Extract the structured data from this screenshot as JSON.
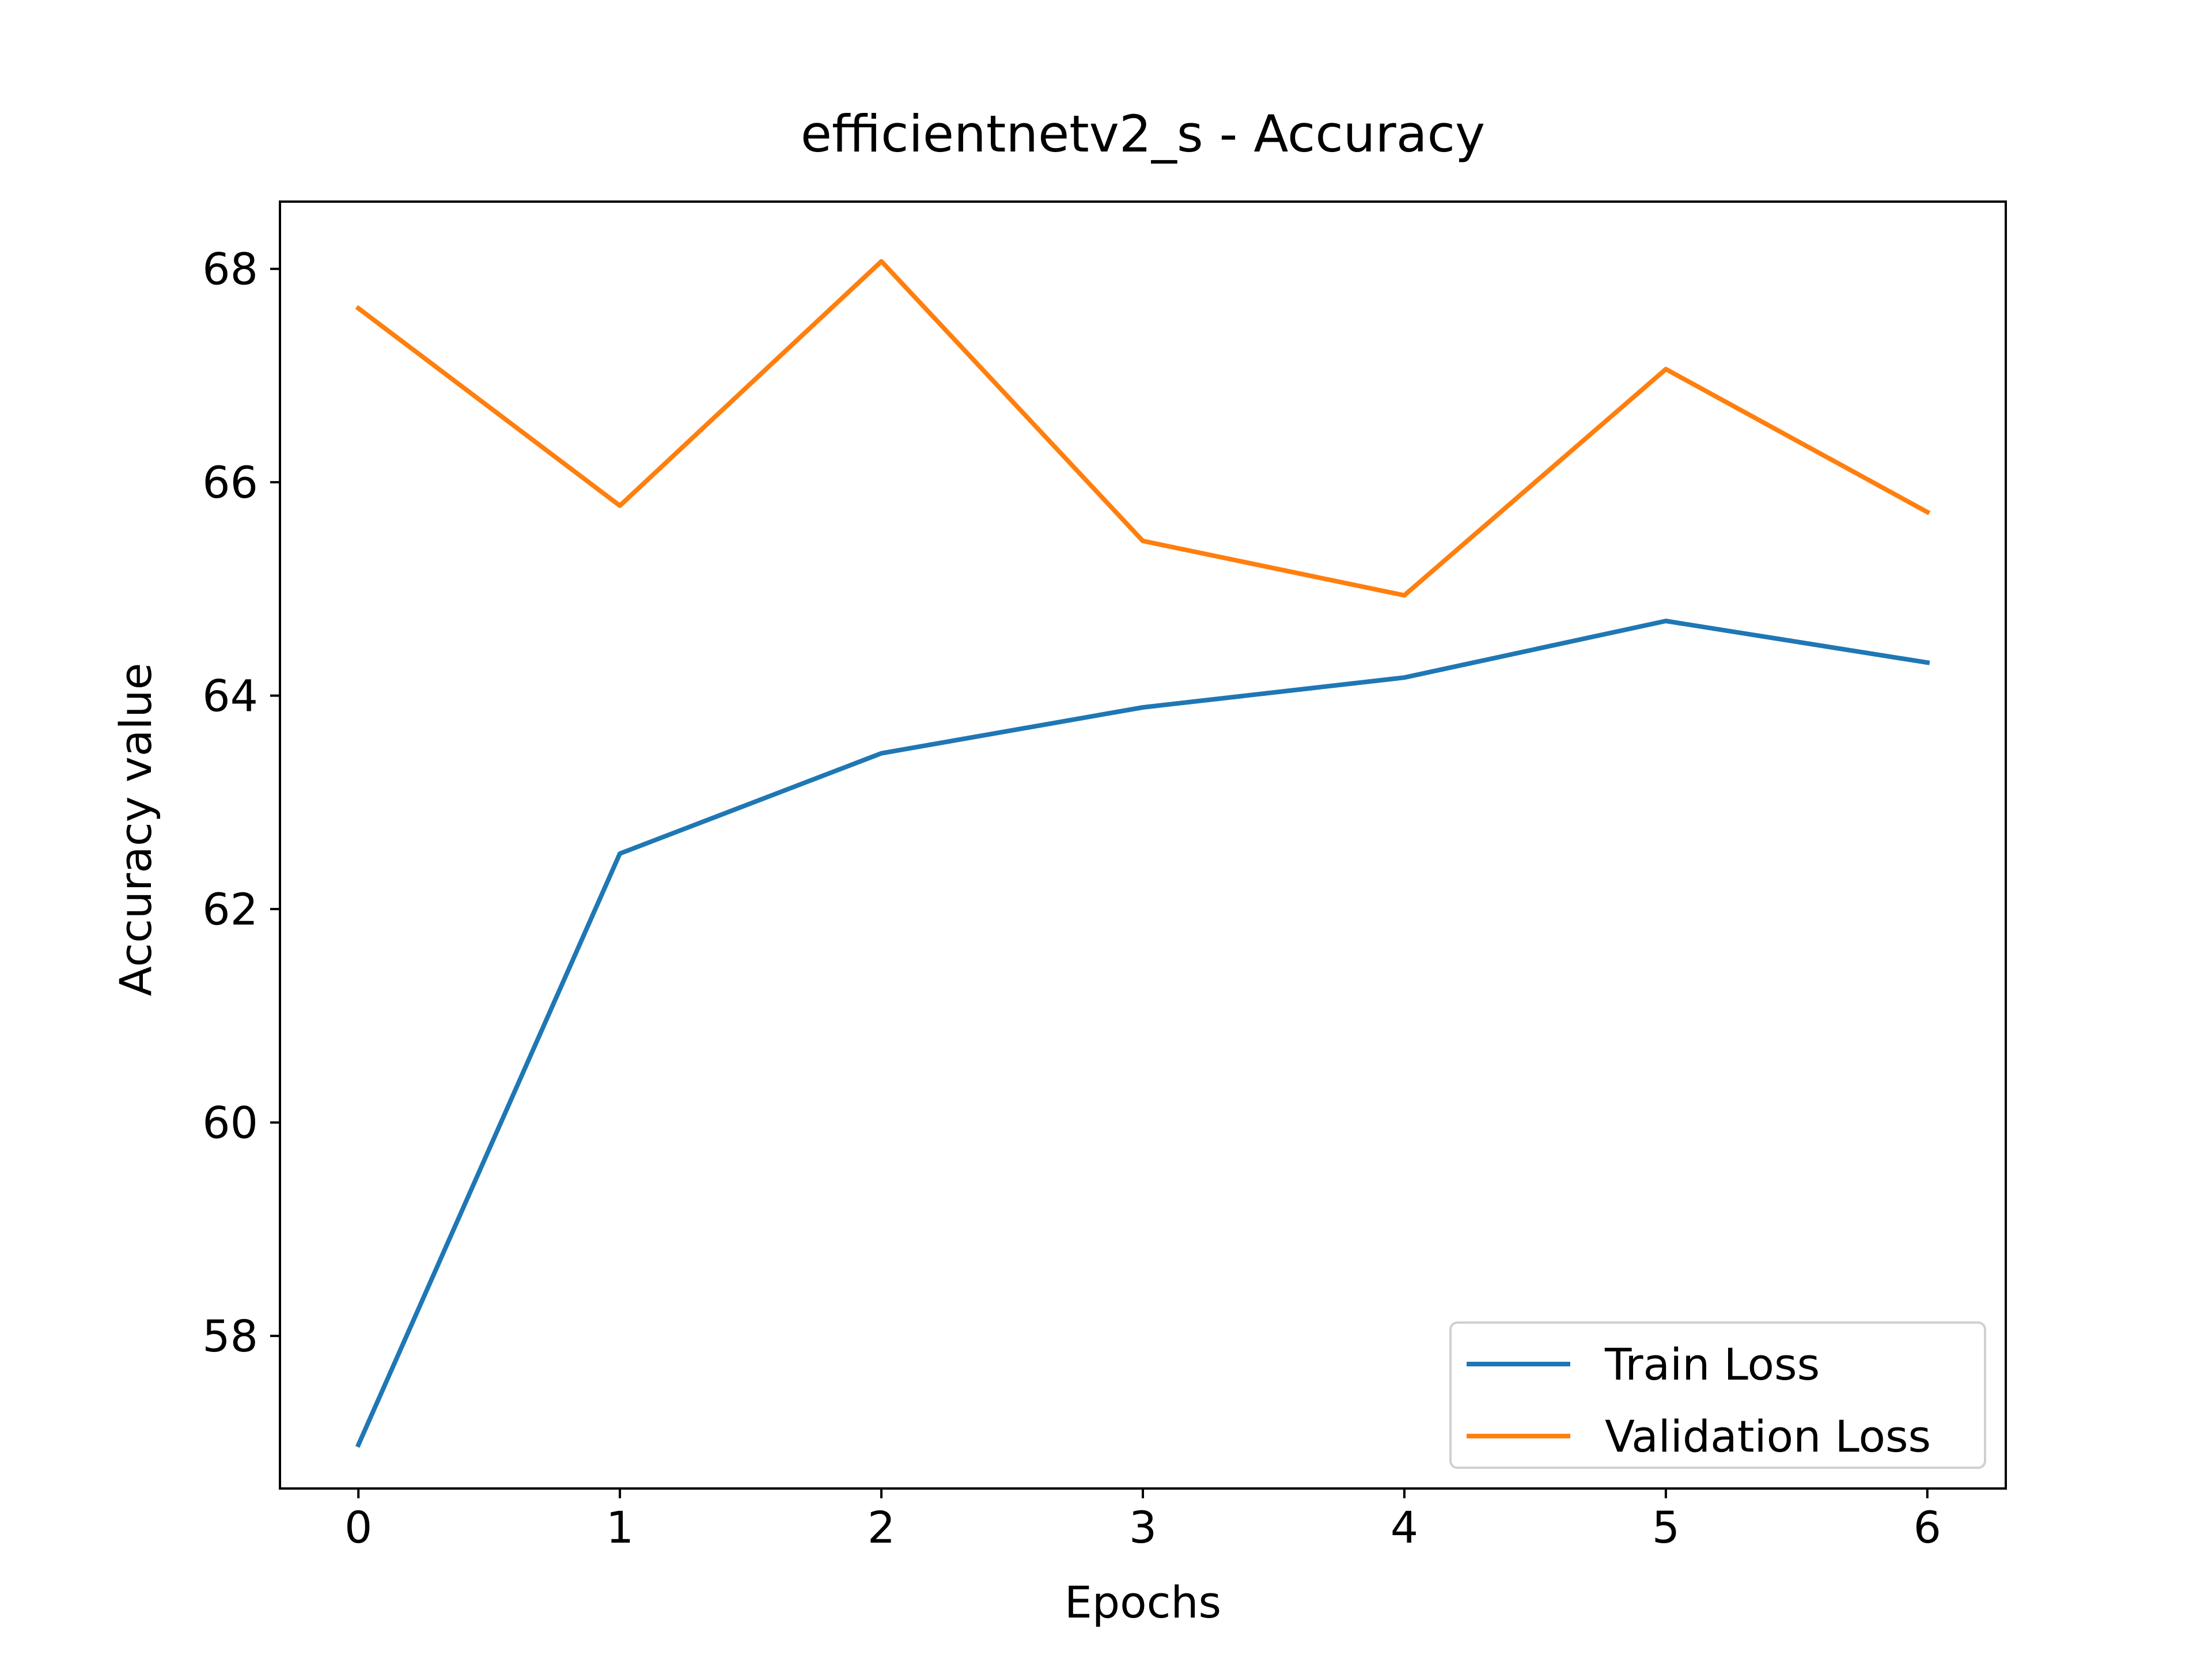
{
  "chart_data": {
    "type": "line",
    "title": "efficientnetv2_s - Accuracy",
    "xlabel": "Epochs",
    "ylabel": "Accuracy value",
    "x": [
      0,
      1,
      2,
      3,
      4,
      5,
      6
    ],
    "xlim": [
      -0.3,
      6.3
    ],
    "ylim": [
      56.57,
      68.63
    ],
    "xticks": [
      0,
      1,
      2,
      3,
      4,
      5,
      6
    ],
    "yticks": [
      58,
      60,
      62,
      64,
      66,
      68
    ],
    "grid": false,
    "legend_position": "lower-right",
    "series": [
      {
        "name": "Train Loss",
        "color": "#1f77b4",
        "values": [
          56.98,
          62.52,
          63.46,
          63.89,
          64.17,
          64.7,
          64.31
        ]
      },
      {
        "name": "Validation Loss",
        "color": "#ff7f0e",
        "values": [
          67.63,
          65.78,
          68.07,
          65.45,
          64.94,
          67.06,
          65.72
        ]
      }
    ]
  }
}
